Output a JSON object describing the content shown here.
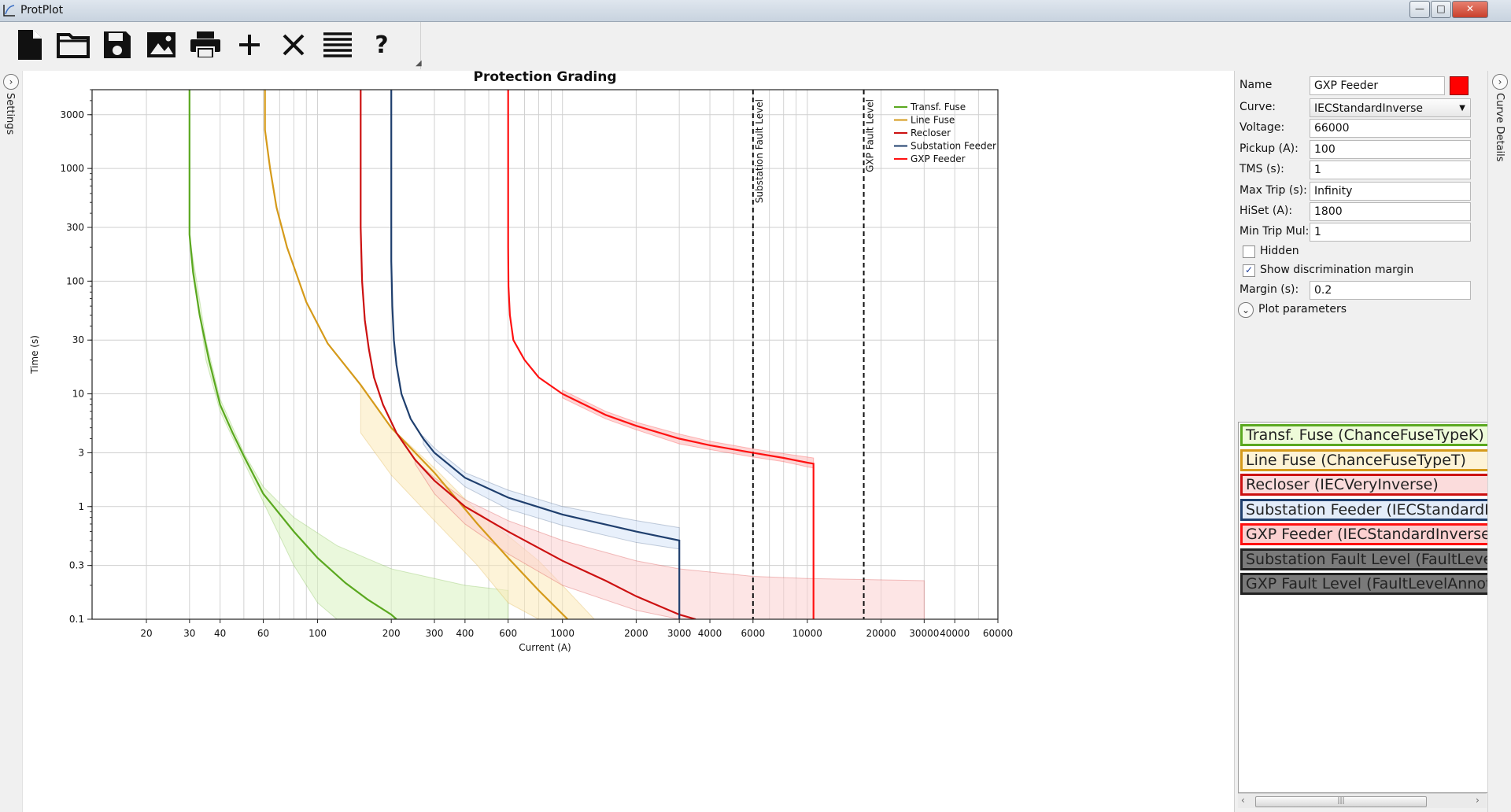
{
  "window": {
    "title": "ProtPlot",
    "controls": {
      "minimize": "—",
      "maximize": "□",
      "close": "✕"
    }
  },
  "toolbar": {
    "buttons": [
      {
        "icon": "new-file-icon",
        "tooltip": "New"
      },
      {
        "icon": "open-folder-icon",
        "tooltip": "Open"
      },
      {
        "icon": "save-icon",
        "tooltip": "Save"
      },
      {
        "icon": "image-export-icon",
        "tooltip": "Export image"
      },
      {
        "icon": "print-icon",
        "tooltip": "Print"
      },
      {
        "icon": "add-icon",
        "tooltip": "Add"
      },
      {
        "icon": "delete-icon",
        "tooltip": "Delete"
      },
      {
        "icon": "list-icon",
        "tooltip": "List"
      },
      {
        "icon": "help-icon",
        "tooltip": "Help",
        "glyph": "?"
      }
    ]
  },
  "left_dock": {
    "label": "Settings",
    "toggle": "›"
  },
  "right_dock": {
    "label": "Curve Details",
    "toggle": "›"
  },
  "details": {
    "name_label": "Name",
    "name_value": "GXP Feeder",
    "name_color": "#ff0000",
    "curve_label": "Curve:",
    "curve_value": "IECStandardInverse",
    "curve_arrow": "▼",
    "voltage_label": "Voltage:",
    "voltage_value": "66000",
    "pickup_label": "Pickup (A):",
    "pickup_value": "100",
    "tms_label": "TMS (s):",
    "tms_value": "1",
    "maxtrip_label": "Max Trip (s):",
    "maxtrip_value": "Infinity",
    "hiset_label": "HiSet (A):",
    "hiset_value": "1800",
    "mintrip_label": "Min Trip Mul:",
    "mintrip_value": "1",
    "hidden_label": "Hidden",
    "hidden_checked": "",
    "margin_check_label": "Show discrimination margin",
    "margin_checked": "✓",
    "margin_label": "Margin (s):",
    "margin_value": "0.2",
    "plot_params_label": "Plot parameters",
    "plot_params_toggle": "⌄"
  },
  "curve_list": [
    {
      "label": "Transf. Fuse (ChanceFuseTypeK)",
      "bg": "#eefbd9",
      "border": "#5aa81f"
    },
    {
      "label": "Line Fuse (ChanceFuseTypeT)",
      "bg": "#fdf3d6",
      "border": "#d59a1a"
    },
    {
      "label": "Recloser (IECVeryInverse)",
      "bg": "#fbdcdc",
      "border": "#cc1111"
    },
    {
      "label": "Substation Feeder (IECStandardInverse)",
      "bg": "#e3ecf9",
      "border": "#1f3f6e"
    },
    {
      "label": "GXP Feeder (IECStandardInverse)",
      "bg": "#fbd0d0",
      "border": "#ff1111"
    },
    {
      "label": "Substation Fault Level (FaultLevelAnnotation)",
      "bg": "#7a7a7a",
      "border": "#222222"
    },
    {
      "label": "GXP Fault Level (FaultLevelAnnotation)",
      "bg": "#7a7a7a",
      "border": "#222222"
    }
  ],
  "scrollbar": {
    "thumb": "|||",
    "left": "‹",
    "right": "›"
  },
  "chart_data": {
    "type": "line",
    "title": "Protection Grading",
    "xlabel": "Current (A)",
    "ylabel": "Time (s)",
    "x_scale": "log",
    "y_scale": "log",
    "xlim": [
      12,
      60000
    ],
    "ylim": [
      0.1,
      5000
    ],
    "x_ticks": [
      20,
      30,
      40,
      60,
      100,
      200,
      300,
      400,
      600,
      1000,
      2000,
      3000,
      4000,
      6000,
      10000,
      20000,
      30000,
      40000,
      60000
    ],
    "x_tick_labels": [
      "20",
      "30",
      "40",
      "60",
      "100",
      "200",
      "300",
      "400",
      "600",
      "1000",
      "2000",
      "3000",
      "4000",
      "6000",
      "10000",
      "20000",
      "30000",
      "40000",
      "60000"
    ],
    "y_ticks": [
      0.1,
      0.3,
      1,
      3,
      10,
      30,
      100,
      300,
      1000,
      3000
    ],
    "y_tick_labels": [
      "0.1",
      "0.3",
      "1",
      "3",
      "10",
      "30",
      "100",
      "300",
      "1000",
      "3000"
    ],
    "grid": true,
    "legend_position": "top-right",
    "series": [
      {
        "name": "Transf. Fuse",
        "color": "#5aa81f",
        "band_color": "#d9f3c0",
        "x": [
          30,
          30,
          31,
          33,
          36,
          40,
          45,
          50,
          60,
          80,
          100,
          130,
          160,
          200,
          210
        ],
        "y": [
          5000,
          260,
          120,
          50,
          20,
          8,
          4.5,
          2.8,
          1.3,
          0.6,
          0.35,
          0.21,
          0.15,
          0.11,
          0.1
        ],
        "band_x": [
          30,
          35,
          40,
          50,
          60,
          80,
          120,
          200,
          400,
          600,
          600,
          400,
          200,
          150,
          120,
          100,
          80,
          60,
          50,
          40,
          35,
          30
        ],
        "band_y": [
          250,
          30,
          9,
          3,
          1.5,
          0.8,
          0.45,
          0.28,
          0.2,
          0.18,
          0.1,
          0.1,
          0.1,
          0.1,
          0.1,
          0.14,
          0.3,
          1.1,
          2.5,
          7,
          20,
          240
        ]
      },
      {
        "name": "Line Fuse",
        "color": "#d59a1a",
        "band_color": "#fbe9b8",
        "x": [
          61,
          61,
          64,
          68,
          75,
          90,
          110,
          150,
          200,
          300,
          450,
          600,
          800,
          1050
        ],
        "y": [
          5000,
          2200,
          1000,
          450,
          200,
          65,
          28,
          12,
          5,
          2,
          0.7,
          0.35,
          0.18,
          0.1
        ],
        "band_x": [
          150,
          200,
          300,
          450,
          600,
          800,
          1000,
          1350,
          1050,
          800,
          600,
          450,
          300,
          200,
          150
        ],
        "band_y": [
          12,
          5,
          2.2,
          0.9,
          0.55,
          0.33,
          0.2,
          0.1,
          0.1,
          0.1,
          0.14,
          0.3,
          0.75,
          1.9,
          4.5
        ]
      },
      {
        "name": "Recloser",
        "color": "#cc1111",
        "band_color": "#fbcfcf",
        "x": [
          150,
          150,
          152,
          156,
          162,
          170,
          185,
          210,
          250,
          300,
          400,
          600,
          1000,
          1500,
          2000,
          3000,
          3500
        ],
        "y": [
          5000,
          300,
          100,
          45,
          25,
          14,
          8,
          4.5,
          2.6,
          1.7,
          1,
          0.6,
          0.33,
          0.22,
          0.16,
          0.11,
          0.1
        ],
        "band_x": [
          250,
          300,
          400,
          600,
          1000,
          2000,
          3000,
          6000,
          10000,
          30000,
          30000,
          3500,
          3000,
          2000,
          1000,
          600,
          400,
          300,
          250
        ],
        "band_y": [
          2.6,
          1.8,
          1.15,
          0.75,
          0.5,
          0.33,
          0.28,
          0.24,
          0.23,
          0.22,
          0.1,
          0.1,
          0.1,
          0.12,
          0.2,
          0.38,
          0.7,
          1.3,
          2.4
        ]
      },
      {
        "name": "Substation Feeder",
        "color": "#1f3f6e",
        "band_color": "#d5e3f7",
        "x": [
          200,
          200,
          202,
          205,
          210,
          220,
          240,
          270,
          300,
          400,
          600,
          1000,
          2000,
          3000,
          3000
        ],
        "y": [
          5000,
          150,
          60,
          30,
          18,
          10,
          6,
          4,
          3,
          1.8,
          1.2,
          0.85,
          0.6,
          0.5,
          0.1
        ],
        "band_x": [
          270,
          300,
          400,
          600,
          1000,
          2000,
          3000,
          3000,
          2000,
          1000,
          600,
          400,
          300,
          270
        ],
        "band_y": [
          4.2,
          3.3,
          2,
          1.4,
          1,
          0.75,
          0.65,
          0.42,
          0.48,
          0.68,
          0.95,
          1.5,
          2.6,
          3.6
        ]
      },
      {
        "name": "GXP Feeder",
        "color": "#ff1111",
        "band_color": "#fbb6b6",
        "x": [
          600,
          600,
          602,
          610,
          630,
          700,
          800,
          1000,
          1500,
          2000,
          3000,
          4000,
          6000,
          8000,
          10000,
          10600,
          10600
        ],
        "y": [
          5000,
          200,
          90,
          50,
          30,
          20,
          14,
          10,
          6.5,
          5.2,
          4,
          3.5,
          3,
          2.7,
          2.45,
          2.4,
          0.1
        ],
        "band_x": [
          1000,
          1500,
          2000,
          3000,
          4000,
          6000,
          8000,
          10000,
          10600,
          10600,
          10000,
          8000,
          6000,
          4000,
          3000,
          2000,
          1500,
          1000
        ],
        "band_y": [
          10.8,
          7,
          5.6,
          4.4,
          3.8,
          3.25,
          2.95,
          2.75,
          2.7,
          2.2,
          2.25,
          2.5,
          2.75,
          3.2,
          3.6,
          4.8,
          6,
          9.2
        ]
      }
    ],
    "fault_levels": [
      {
        "name": "Substation Fault Level",
        "x": 6000
      },
      {
        "name": "GXP Fault Level",
        "x": 17000
      }
    ]
  }
}
